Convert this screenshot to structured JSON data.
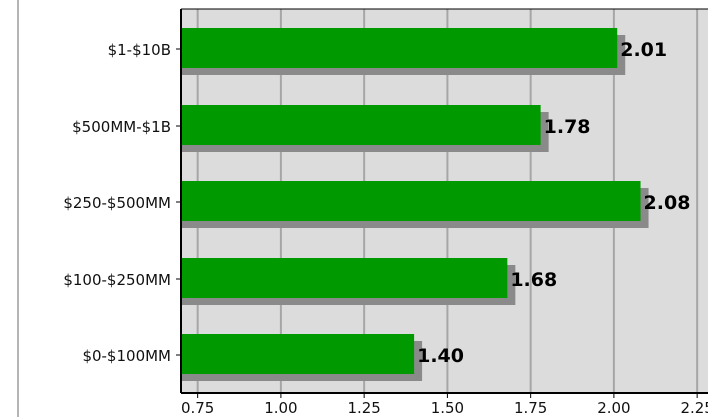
{
  "chart_data": {
    "type": "bar",
    "orientation": "horizontal",
    "title": "",
    "xlabel": "",
    "ylabel": "",
    "categories": [
      "$1-$10B",
      "$500MM-$1B",
      "$250-$500MM",
      "$100-$250MM",
      "$0-$100MM"
    ],
    "values": [
      2.01,
      1.78,
      2.08,
      1.68,
      1.4
    ],
    "value_labels": [
      "2.01",
      "1.78",
      "2.08",
      "1.68",
      "1.40"
    ],
    "x_ticks": [
      "0.75",
      "1.00",
      "1.25",
      "1.50",
      "1.75",
      "2.00",
      "2.25"
    ],
    "xlim": [
      0.7,
      2.25
    ],
    "grid": true,
    "legend": "none",
    "colors": {
      "bar": "#009900",
      "bar_shadow": "#8a8a8a",
      "plot_background": "#dcdcdc",
      "grid": "#a6a6a6",
      "axis": "#000000"
    }
  }
}
